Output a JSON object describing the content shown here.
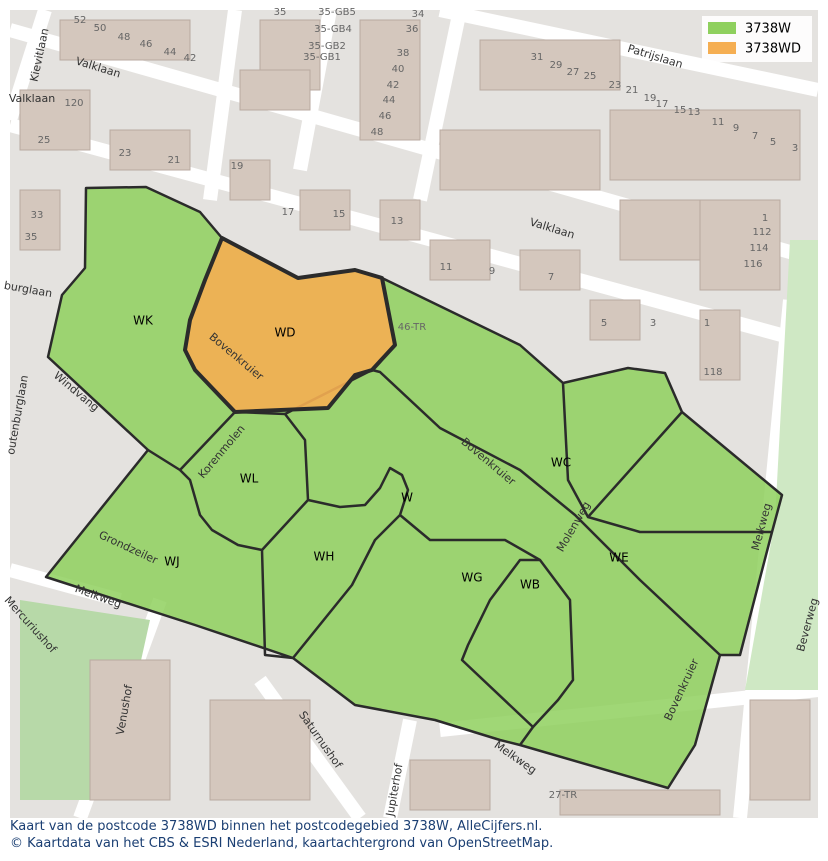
{
  "legend": [
    {
      "label": "3738W",
      "color": "#8fd05e"
    },
    {
      "label": "3738WD",
      "color": "#f5ae52"
    }
  ],
  "regions": [
    "WK",
    "WD",
    "WL",
    "WJ",
    "WH",
    "W",
    "WG",
    "WB",
    "WC",
    "WE"
  ],
  "streets": [
    "Valklaan",
    "Valklaan",
    "Patrijslaan",
    "Kievitlaan",
    "Valklaan",
    "burglaan",
    "outenburglaan",
    "Windvang",
    "Grondzeiler",
    "Melkweg",
    "Korenmolen",
    "Bovenkruier",
    "Bovenkruier",
    "Molenweg",
    "Melkweg",
    "Mercuriushof",
    "Venushof",
    "Saturnushof",
    "Jupiterhof",
    "Melkweg",
    "Beverweg",
    "Bovenkruier"
  ],
  "house_numbers": [
    "52",
    "50",
    "48",
    "46",
    "44",
    "42",
    "35",
    "35-GB5",
    "35-GB4",
    "35-GB2",
    "35-GB1",
    "34",
    "36",
    "38",
    "40",
    "42",
    "44",
    "46",
    "48",
    "31",
    "29",
    "27",
    "25",
    "23",
    "21",
    "19",
    "17",
    "15",
    "13",
    "11",
    "9",
    "7",
    "5",
    "3",
    "1",
    "112",
    "114",
    "116",
    "118",
    "120",
    "25",
    "23",
    "21",
    "19",
    "17",
    "15",
    "13",
    "11",
    "9",
    "7",
    "5",
    "3",
    "1",
    "27-TR",
    "46-TR",
    "33",
    "35"
  ],
  "caption": [
    "Kaart van de postcode 3738WD binnen het postcodegebied 3738W, AlleCijfers.nl.",
    "© Kaartdata van het CBS & ESRI Nederland, kaartachtergrond van OpenStreetMap."
  ]
}
